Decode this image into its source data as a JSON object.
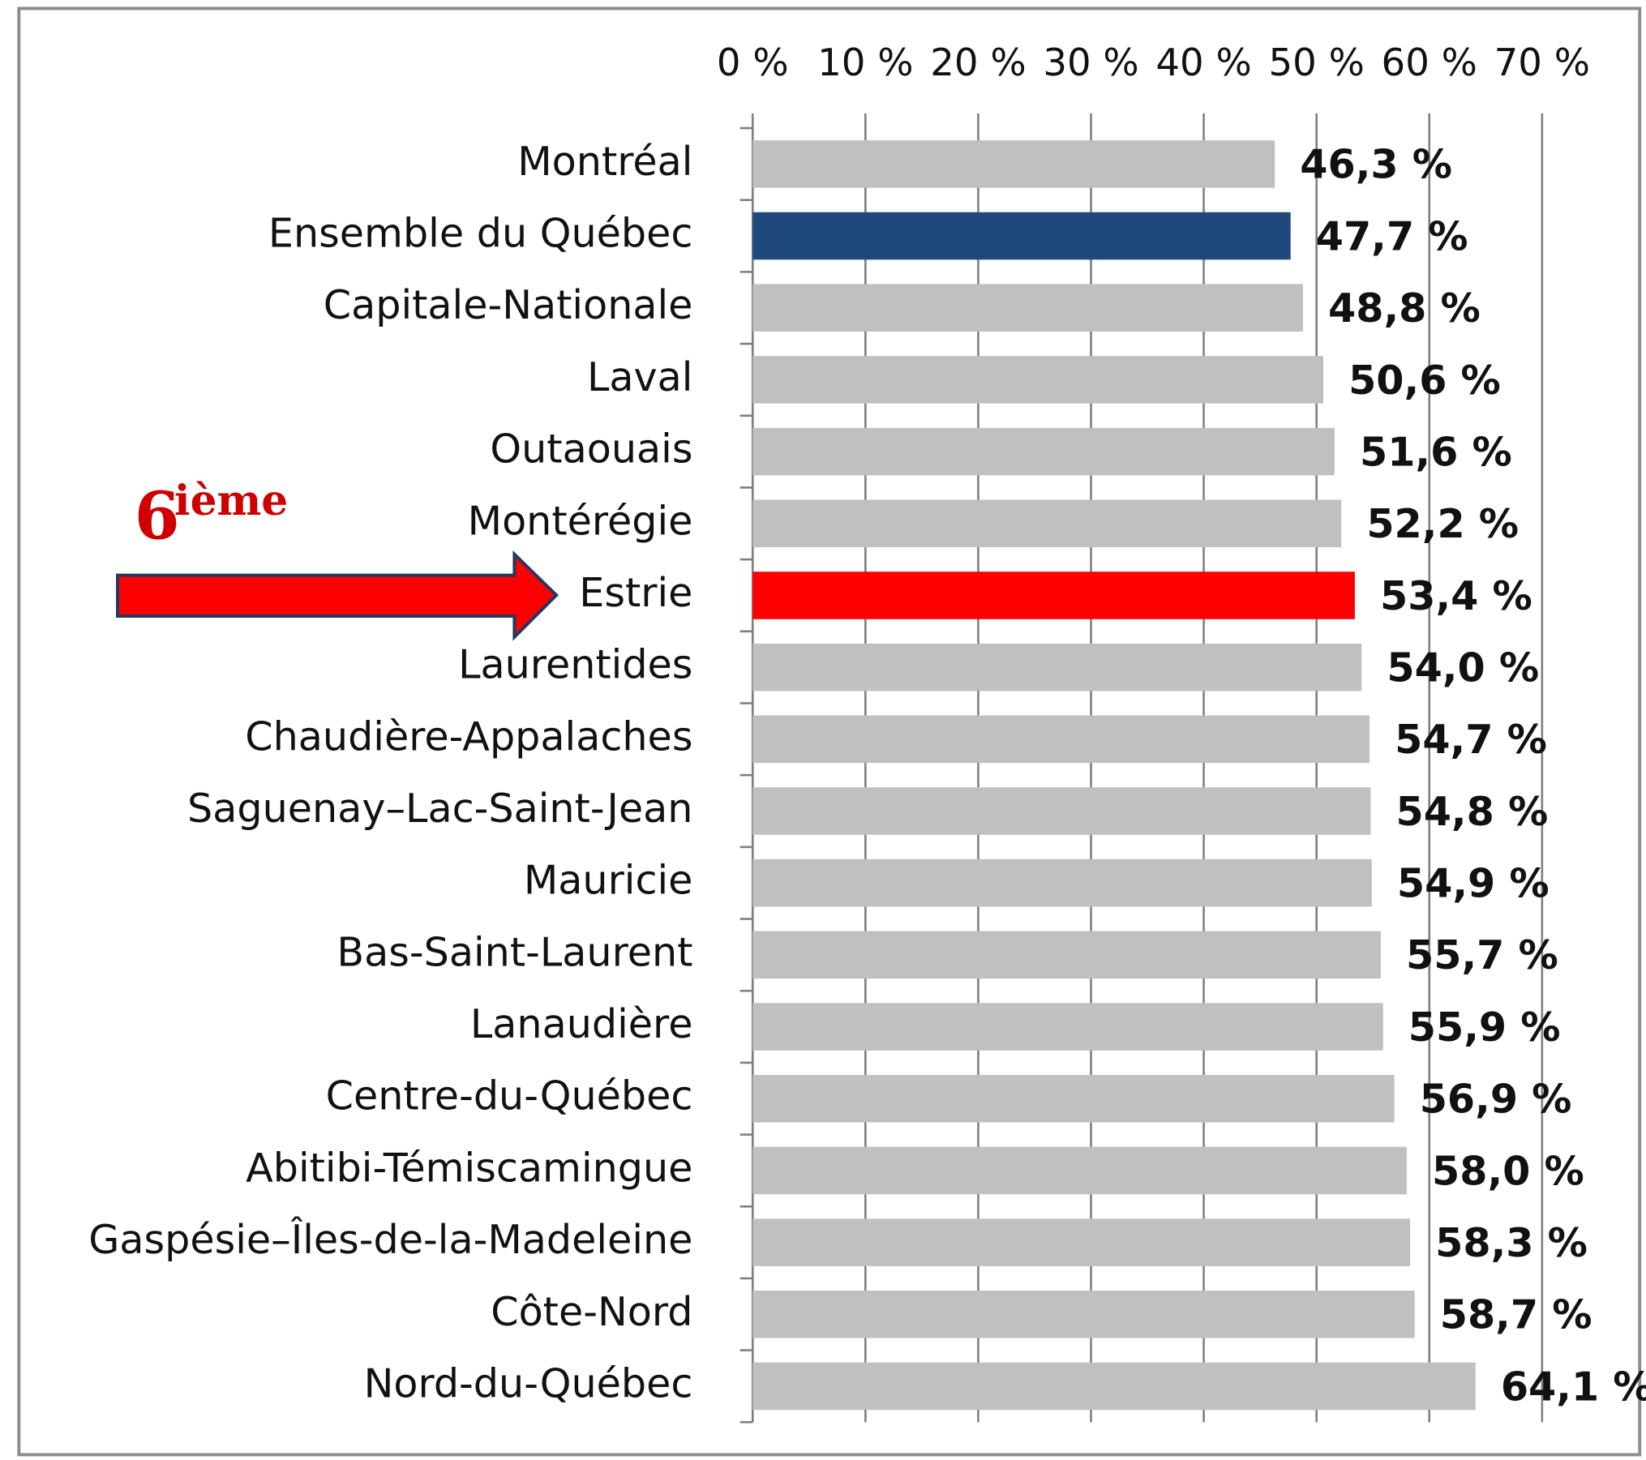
{
  "chart_data": {
    "type": "bar",
    "orientation": "horizontal",
    "categories": [
      "Montréal",
      "Ensemble du Québec",
      "Capitale-Nationale",
      "Laval",
      "Outaouais",
      "Montérégie",
      "Estrie",
      "Laurentides",
      "Chaudière-Appalaches",
      "Saguenay–Lac-Saint-Jean",
      "Mauricie",
      "Bas-Saint-Laurent",
      "Lanaudière",
      "Centre-du-Québec",
      "Abitibi-Témiscamingue",
      "Gaspésie–Îles-de-la-Madeleine",
      "Côte-Nord",
      "Nord-du-Québec"
    ],
    "values": [
      46.3,
      47.7,
      48.8,
      50.6,
      51.6,
      52.2,
      53.4,
      54.0,
      54.7,
      54.8,
      54.9,
      55.7,
      55.9,
      56.9,
      58.0,
      58.3,
      58.7,
      64.1
    ],
    "value_labels": [
      "46,3 %",
      "47,7 %",
      "48,8 %",
      "50,6 %",
      "51,6 %",
      "52,2 %",
      "53,4 %",
      "54,0 %",
      "54,7 %",
      "54,8 %",
      "54,9 %",
      "55,7 %",
      "55,9 %",
      "56,9 %",
      "58,0 %",
      "58,3 %",
      "58,7 %",
      "64,1 %"
    ],
    "colors": [
      "#c0c0c0",
      "#1f497d",
      "#c0c0c0",
      "#c0c0c0",
      "#c0c0c0",
      "#c0c0c0",
      "#ff0000",
      "#c0c0c0",
      "#c0c0c0",
      "#c0c0c0",
      "#c0c0c0",
      "#c0c0c0",
      "#c0c0c0",
      "#c0c0c0",
      "#c0c0c0",
      "#c0c0c0",
      "#c0c0c0",
      "#c0c0c0"
    ],
    "xlim": [
      0,
      70
    ],
    "xticks": [
      {
        "value": 0,
        "label": "0 %"
      },
      {
        "value": 10,
        "label": "10 %"
      },
      {
        "value": 20,
        "label": "20 %"
      },
      {
        "value": 30,
        "label": "30 %"
      },
      {
        "value": 40,
        "label": "40 %"
      },
      {
        "value": 50,
        "label": "50 %"
      },
      {
        "value": 60,
        "label": "60 %"
      },
      {
        "value": 70,
        "label": "70 %"
      }
    ],
    "grid": true,
    "annotation": {
      "number": "6",
      "suffix": "ième"
    }
  }
}
